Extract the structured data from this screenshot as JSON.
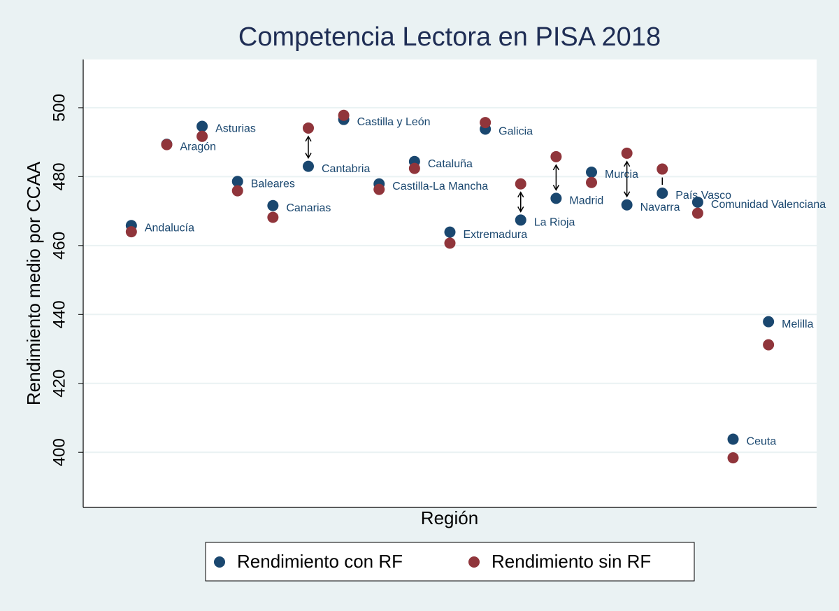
{
  "chart_data": {
    "type": "scatter",
    "title": "Competencia Lectora en PISA 2018",
    "x_label": "Región",
    "y_label": "Rendimiento medio por CCAA",
    "categories": [
      "Andalucía",
      "Aragón",
      "Asturias",
      "Baleares",
      "Canarias",
      "Cantabria",
      "Castilla y León",
      "Castilla-La Mancha",
      "Cataluña",
      "Extremadura",
      "Galicia",
      "La Rioja",
      "Madrid",
      "Murcia",
      "Navarra",
      "País Vasco",
      "Comunidad Valenciana",
      "Ceuta",
      "Melilla"
    ],
    "series": [
      {
        "name": "Rendimiento con RF",
        "color": "#1a476f",
        "values": [
          465.8,
          489.4,
          494.6,
          478.6,
          471.6,
          483.0,
          496.6,
          477.9,
          484.4,
          463.9,
          493.8,
          467.4,
          473.7,
          481.3,
          471.8,
          475.2,
          472.6,
          403.8,
          437.9
        ]
      },
      {
        "name": "Rendimiento sin RF",
        "color": "#90353b",
        "values": [
          464.0,
          489.3,
          491.7,
          475.9,
          468.2,
          494.1,
          497.8,
          476.3,
          482.4,
          460.7,
          495.7,
          477.9,
          485.8,
          478.3,
          486.8,
          482.2,
          469.4,
          398.4,
          431.2
        ]
      }
    ],
    "ylim": [
      384,
      514
    ],
    "yticks": [
      400,
      420,
      440,
      460,
      480,
      500
    ],
    "grid": true
  }
}
